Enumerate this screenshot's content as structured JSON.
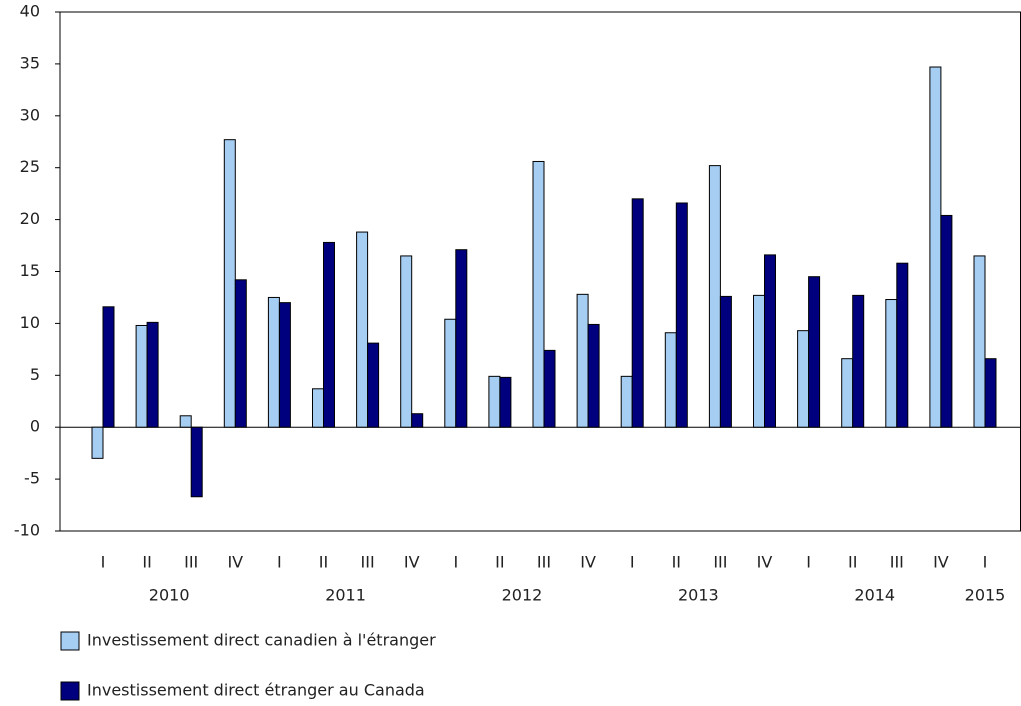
{
  "chart_data": {
    "type": "bar",
    "groups": [
      {
        "name": "2010",
        "categories": [
          "I",
          "II",
          "III",
          "IV"
        ]
      },
      {
        "name": "2011",
        "categories": [
          "I",
          "II",
          "III",
          "IV"
        ]
      },
      {
        "name": "2012",
        "categories": [
          "I",
          "II",
          "III",
          "IV"
        ]
      },
      {
        "name": "2013",
        "categories": [
          "I",
          "II",
          "III",
          "IV"
        ]
      },
      {
        "name": "2014",
        "categories": [
          "I",
          "II",
          "III",
          "IV"
        ]
      },
      {
        "name": "2015",
        "categories": [
          "I"
        ]
      }
    ],
    "series": [
      {
        "name": "Investissement direct canadien à l'étranger",
        "color": "#a6cdf2",
        "values": [
          -3,
          9.8,
          1.1,
          27.7,
          12.5,
          3.7,
          18.8,
          16.5,
          10.4,
          4.9,
          25.6,
          12.8,
          4.9,
          9.1,
          25.2,
          12.7,
          9.3,
          6.6,
          12.3,
          34.7,
          16.5
        ]
      },
      {
        "name": "Investissement direct étranger au Canada",
        "color": "#00007f",
        "values": [
          11.6,
          10.1,
          -6.7,
          14.2,
          12.0,
          17.8,
          8.1,
          1.3,
          17.1,
          4.8,
          7.4,
          9.9,
          22.0,
          21.6,
          12.6,
          16.6,
          14.5,
          12.7,
          15.8,
          20.4,
          6.6
        ]
      }
    ],
    "ylim": [
      -10,
      40
    ],
    "yticks": [
      -10,
      -5,
      0,
      5,
      10,
      15,
      20,
      25,
      30,
      35,
      40
    ]
  }
}
